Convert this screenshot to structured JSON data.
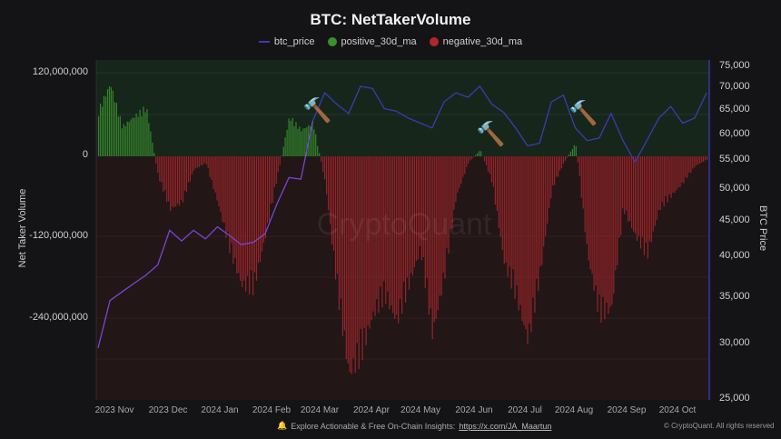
{
  "title": "BTC: NetTakerVolume",
  "legend": [
    {
      "label": "btc_price",
      "type": "line",
      "color": "#3b3bb0"
    },
    {
      "label": "positive_30d_ma",
      "type": "dot",
      "color": "#3a8f2e"
    },
    {
      "label": "negative_30d_ma",
      "type": "dot",
      "color": "#b3262b"
    }
  ],
  "axes": {
    "left_label": "Net Taker Volume",
    "right_label": "BTC Price",
    "left_ticks": [
      "120,000,000",
      "0",
      "-120,000,000",
      "-240,000,000"
    ],
    "right_ticks": [
      "75,000",
      "70,000",
      "65,000",
      "60,000",
      "55,000",
      "50,000",
      "45,000",
      "40,000",
      "35,000",
      "30,000",
      "25,000"
    ],
    "x_ticks": [
      "2023 Nov",
      "2023 Dec",
      "2024 Jan",
      "2024 Feb",
      "2024 Mar",
      "2024 Apr",
      "2024 May",
      "2024 Jun",
      "2024 Jul",
      "2024 Aug",
      "2024 Sep",
      "2024 Oct"
    ]
  },
  "watermark": "CryptoQuant",
  "footer": {
    "bell_icon": "🔔",
    "text": "Explore Actionable & Free On-Chain Insights:",
    "link": "https://x.com/JA_Maartun",
    "copyright": "© CryptoQuant. All rights reserved"
  },
  "annotations": [
    {
      "icon": "🔨",
      "label": "hammer-marker",
      "near": "2024 Mar"
    },
    {
      "icon": "🔨",
      "label": "hammer-marker",
      "near": "2024 Jun"
    },
    {
      "icon": "🔨",
      "label": "hammer-marker",
      "near": "2024 Aug"
    }
  ],
  "colors": {
    "background": "#141416",
    "positive_zone": "#17261b",
    "negative_zone": "#221617",
    "positive_bar": "#3a8f2e",
    "negative_bar": "#a3262a",
    "price_line_early": "#7a45d6",
    "price_line": "#3b3bb0"
  },
  "chart_data": {
    "type": "bar+line",
    "title": "BTC: NetTakerVolume",
    "xlabel": "",
    "ylabel": "Net Taker Volume",
    "y2label": "BTC Price",
    "ylim": [
      -350000000,
      130000000
    ],
    "y2lim": [
      25000,
      76000
    ],
    "y2scale": "log",
    "grid": true,
    "legend_position": "top",
    "categories": [
      "2023 Nov",
      "2023 Dec",
      "2024 Jan",
      "2024 Feb",
      "2024 Mar",
      "2024 Apr",
      "2024 May",
      "2024 Jun",
      "2024 Jul",
      "2024 Aug",
      "2024 Sep",
      "2024 Oct"
    ],
    "series": [
      {
        "name": "net_taker_volume_30d_ma",
        "type": "bar",
        "note": "approx weekly samples, values in units",
        "x": [
          "2023-10-28",
          "2023-11-04",
          "2023-11-11",
          "2023-11-18",
          "2023-11-25",
          "2023-12-02",
          "2023-12-09",
          "2023-12-16",
          "2023-12-23",
          "2023-12-30",
          "2024-01-06",
          "2024-01-13",
          "2024-01-20",
          "2024-01-27",
          "2024-02-03",
          "2024-02-10",
          "2024-02-17",
          "2024-02-24",
          "2024-03-02",
          "2024-03-09",
          "2024-03-16",
          "2024-03-23",
          "2024-03-30",
          "2024-04-06",
          "2024-04-13",
          "2024-04-20",
          "2024-04-27",
          "2024-05-04",
          "2024-05-11",
          "2024-05-18",
          "2024-05-25",
          "2024-06-01",
          "2024-06-08",
          "2024-06-15",
          "2024-06-22",
          "2024-06-29",
          "2024-07-06",
          "2024-07-13",
          "2024-07-20",
          "2024-07-27",
          "2024-08-03",
          "2024-08-10",
          "2024-08-17",
          "2024-08-24",
          "2024-08-31",
          "2024-09-07",
          "2024-09-14",
          "2024-09-21",
          "2024-09-28",
          "2024-10-05",
          "2024-10-12",
          "2024-10-19"
        ],
        "values": [
          70000000,
          110000000,
          45000000,
          60000000,
          75000000,
          -30000000,
          -80000000,
          -70000000,
          -20000000,
          -10000000,
          -70000000,
          -140000000,
          -195000000,
          -200000000,
          -120000000,
          -30000000,
          60000000,
          40000000,
          50000000,
          -40000000,
          -200000000,
          -330000000,
          -300000000,
          -240000000,
          -210000000,
          -250000000,
          -195000000,
          -140000000,
          -270000000,
          -180000000,
          -60000000,
          -10000000,
          10000000,
          -40000000,
          -160000000,
          -210000000,
          -280000000,
          -180000000,
          -50000000,
          -10000000,
          20000000,
          -150000000,
          -240000000,
          -230000000,
          -80000000,
          -120000000,
          -150000000,
          -80000000,
          -60000000,
          -40000000,
          -15000000,
          -5000000
        ]
      },
      {
        "name": "btc_price",
        "type": "line",
        "x": [
          "2023-10-28",
          "2023-11-04",
          "2023-11-11",
          "2023-11-18",
          "2023-11-25",
          "2023-12-02",
          "2023-12-09",
          "2023-12-16",
          "2023-12-23",
          "2023-12-30",
          "2024-01-06",
          "2024-01-13",
          "2024-01-20",
          "2024-01-27",
          "2024-02-03",
          "2024-02-10",
          "2024-02-17",
          "2024-02-24",
          "2024-03-02",
          "2024-03-09",
          "2024-03-16",
          "2024-03-23",
          "2024-03-30",
          "2024-04-06",
          "2024-04-13",
          "2024-04-20",
          "2024-04-27",
          "2024-05-04",
          "2024-05-11",
          "2024-05-18",
          "2024-05-25",
          "2024-06-01",
          "2024-06-08",
          "2024-06-15",
          "2024-06-22",
          "2024-06-29",
          "2024-07-06",
          "2024-07-13",
          "2024-07-20",
          "2024-07-27",
          "2024-08-03",
          "2024-08-10",
          "2024-08-17",
          "2024-08-24",
          "2024-08-31",
          "2024-09-07",
          "2024-09-14",
          "2024-09-21",
          "2024-09-28",
          "2024-10-05",
          "2024-10-12",
          "2024-10-19"
        ],
        "values": [
          29500,
          34500,
          35500,
          36500,
          37500,
          38800,
          43500,
          42000,
          43500,
          42300,
          44000,
          42800,
          41500,
          41800,
          43000,
          47500,
          51800,
          51500,
          62500,
          68500,
          66000,
          64000,
          70000,
          69500,
          65000,
          64500,
          63000,
          62000,
          61000,
          66500,
          68500,
          67500,
          70000,
          66000,
          64200,
          61000,
          57500,
          58000,
          66500,
          68000,
          61000,
          58500,
          59000,
          64000,
          58500,
          54500,
          58500,
          63000,
          65500,
          62000,
          63000,
          68500
        ]
      }
    ]
  }
}
